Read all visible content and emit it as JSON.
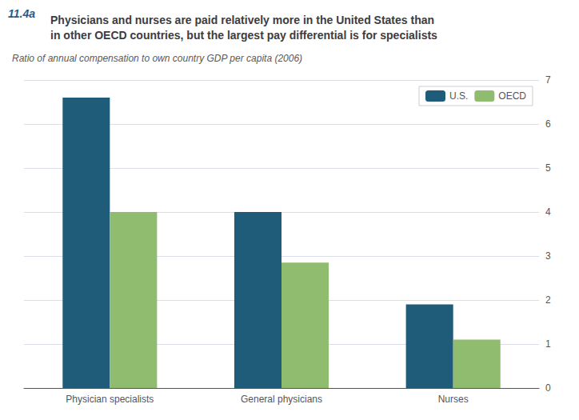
{
  "chart_data": {
    "type": "bar",
    "title": "Physicians and nurses are paid relatively more in the United States than\nin other OECD countries, but the largest pay differential is for specialists",
    "subtitle": "Ratio of annual compensation to own country GDP per capita (2006)",
    "annotations": [
      {
        "text": "11.4a",
        "color": "#1f5c8a"
      }
    ],
    "categories": [
      "Physician specialists",
      "General physicians",
      "Nurses"
    ],
    "series": [
      {
        "name": "U.S.",
        "color": "#1f5c7a",
        "values": [
          6.6,
          4.0,
          1.9
        ]
      },
      {
        "name": "OECD",
        "color": "#8fbc6e",
        "values": [
          4.0,
          2.85,
          1.1
        ]
      }
    ],
    "ylim": [
      0,
      7
    ],
    "yticks": [
      0,
      1,
      2,
      3,
      4,
      5,
      6,
      7
    ],
    "grid": true,
    "legend": "upper right"
  }
}
